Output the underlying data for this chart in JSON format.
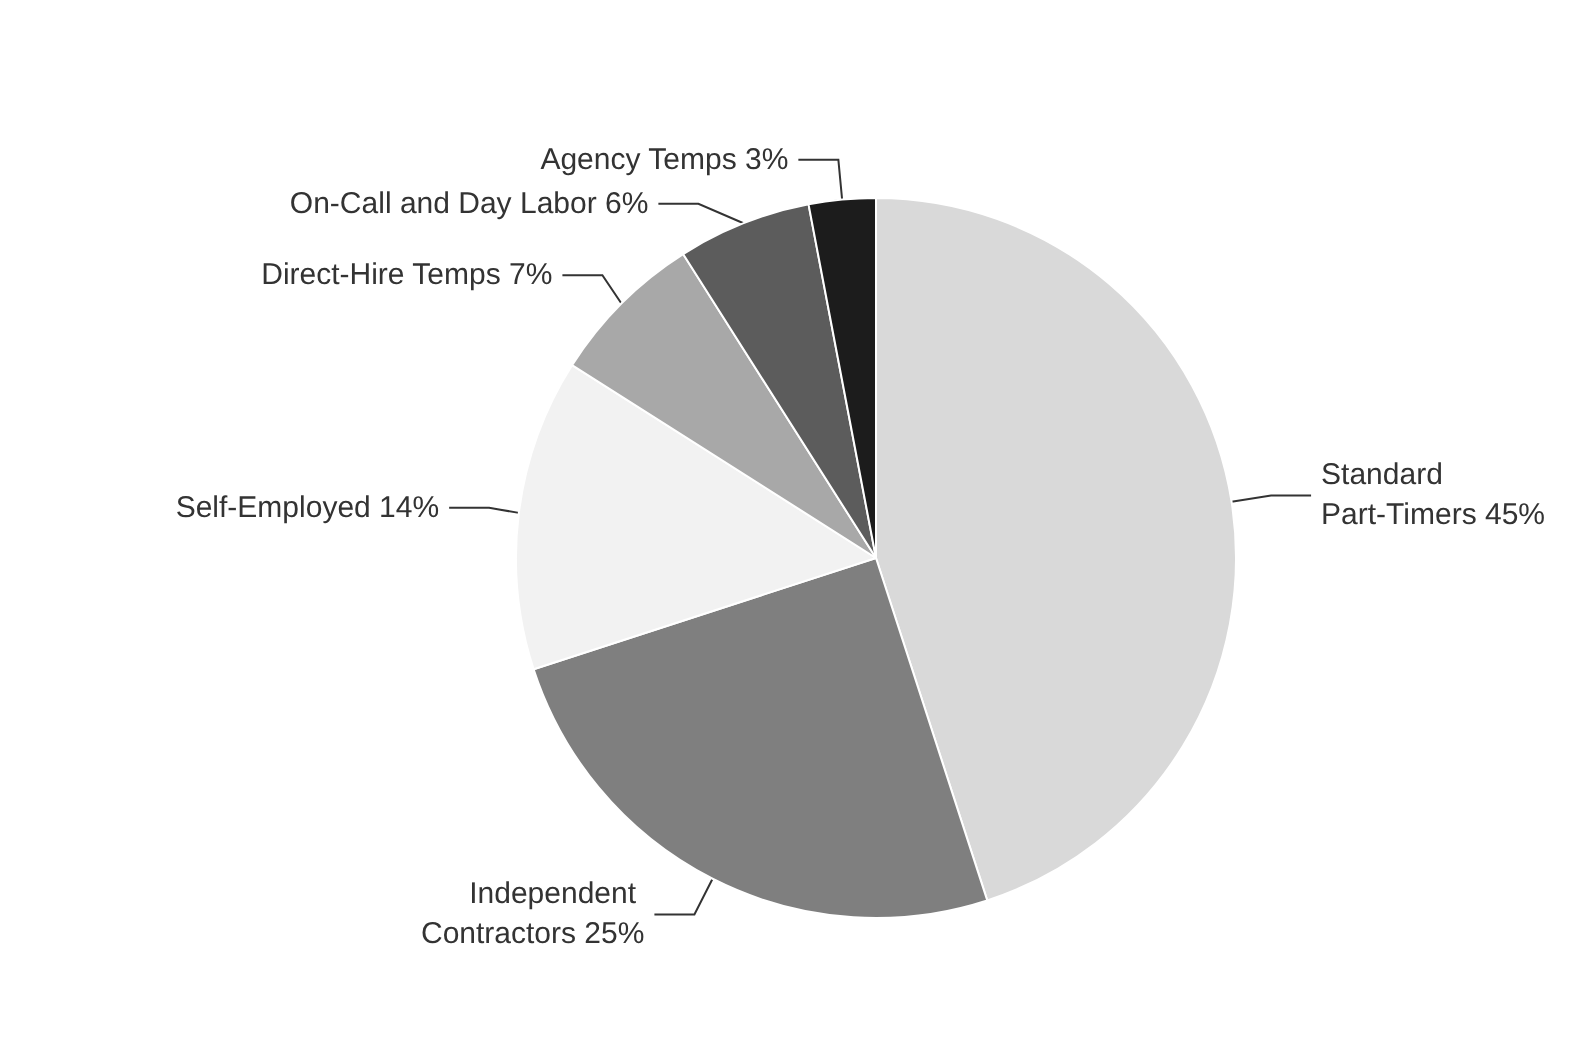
{
  "chart_data": {
    "type": "pie",
    "categories": [
      "Standard Part-Timers",
      "Independent Contractors",
      "Self-Employed",
      "Direct-Hire Temps",
      "On-Call and Day Labor",
      "Agency Temps"
    ],
    "values": [
      45,
      25,
      14,
      7,
      6,
      3
    ],
    "colors": [
      "#d9d9d9",
      "#7f7f7f",
      "#f2f2f2",
      "#a8a8a8",
      "#5c5c5c",
      "#1c1c1c"
    ],
    "value_labels": [
      "45%",
      "25%",
      "14%",
      "7%",
      "6%",
      "3%"
    ]
  }
}
